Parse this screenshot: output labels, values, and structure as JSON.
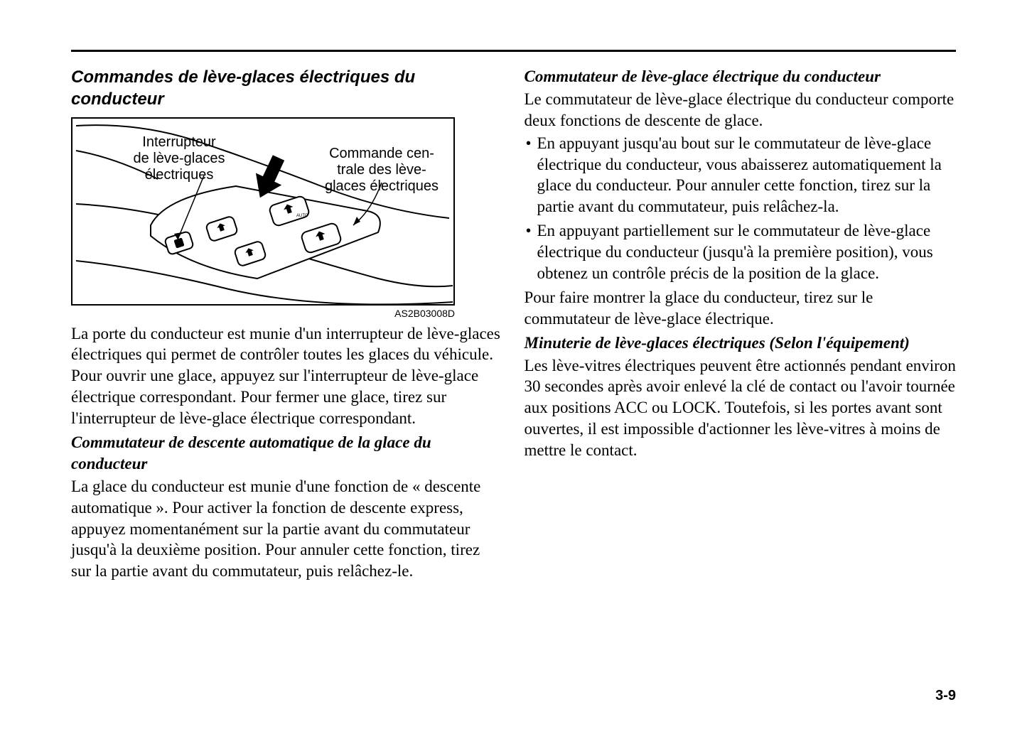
{
  "page_number": "3-9",
  "left": {
    "title": "Commandes de lève-glaces électriques du conducteur",
    "figure": {
      "label_left": "Interrupteur\nde lève-glaces\nélectriques",
      "label_right": "Commande cen-\ntrale des lève-\nglaces électriques",
      "code": "AS2B03008D"
    },
    "para1": "La porte du conducteur est munie d'un interrupteur de lève-glaces électriques qui permet de contrôler toutes les glaces du véhicule. Pour ouvrir une glace, appuyez sur l'interrupteur de lève-glace électrique correspondant. Pour fermer une glace, tirez sur l'interrupteur de lève-glace électrique correspondant.",
    "sub1_title": "Commutateur de descente automatique de la glace du conducteur",
    "sub1_para": "La glace du conducteur est munie d'une fonction de « descente automatique ». Pour activer la fonction de descente express, appuyez momentanément sur la partie avant du commutateur jusqu'à la deuxième position. Pour annuler cette fonction, tirez sur la partie avant du commutateur, puis relâchez-le."
  },
  "right": {
    "sub1_title": "Commutateur de lève-glace électrique du conducteur",
    "sub1_intro": "Le commutateur de lève-glace électrique du conducteur comporte deux fonctions de descente de glace.",
    "bullets": [
      "En appuyant jusqu'au bout sur le commutateur de lève-glace électrique du conducteur, vous abaisserez automatiquement la glace du conducteur. Pour annuler cette fonction, tirez sur la partie avant du commutateur, puis relâchez-la.",
      "En appuyant partiellement sur le commutateur de lève-glace électrique du conducteur (jusqu'à la première position), vous obtenez un contrôle précis de la position de la glace."
    ],
    "sub1_outro": "Pour faire montrer la glace du conducteur, tirez sur le commutateur de lève-glace électrique.",
    "sub2_title": "Minuterie de lève-glaces électriques (Selon l'équipement)",
    "sub2_para": "Les lève-vitres électriques peuvent être actionnés pendant environ 30 secondes après avoir enlevé la clé de contact ou l'avoir tournée aux positions ACC ou LOCK. Toutefois, si les portes avant sont ouvertes, il est impossible d'actionner les lève-vitres à moins de mettre le contact."
  }
}
